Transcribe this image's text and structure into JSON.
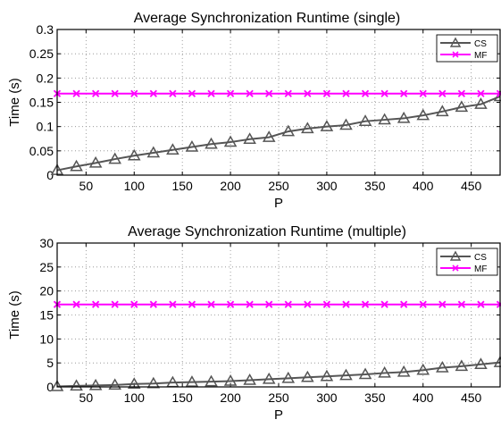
{
  "chart_data": [
    {
      "type": "line",
      "title": "Average Synchronization Runtime (single)",
      "xlabel": "P",
      "ylabel": "Time (s)",
      "xlim": [
        20,
        480
      ],
      "ylim": [
        0,
        0.3
      ],
      "xticks": [
        50,
        100,
        150,
        200,
        250,
        300,
        350,
        400,
        450
      ],
      "yticks": [
        0,
        0.05,
        0.1,
        0.15,
        0.2,
        0.25,
        0.3
      ],
      "ytick_labels": [
        "0",
        "0.05",
        "0.1",
        "0.15",
        "0.2",
        "0.25",
        "0.3"
      ],
      "grid": true,
      "legend_position": "top-right",
      "x": [
        20,
        40,
        60,
        80,
        100,
        120,
        140,
        160,
        180,
        200,
        220,
        240,
        260,
        280,
        300,
        320,
        340,
        360,
        380,
        400,
        420,
        440,
        460,
        480
      ],
      "series": [
        {
          "name": "CS",
          "color": "#555555",
          "marker": "triangle",
          "values": [
            0.01,
            0.018,
            0.025,
            0.033,
            0.04,
            0.046,
            0.052,
            0.058,
            0.064,
            0.068,
            0.074,
            0.078,
            0.09,
            0.096,
            0.1,
            0.103,
            0.111,
            0.114,
            0.117,
            0.123,
            0.131,
            0.14,
            0.146,
            0.162
          ]
        },
        {
          "name": "MF",
          "color": "#ff00ff",
          "marker": "x",
          "values": [
            0.168,
            0.168,
            0.168,
            0.168,
            0.168,
            0.168,
            0.168,
            0.168,
            0.168,
            0.168,
            0.168,
            0.168,
            0.168,
            0.168,
            0.168,
            0.168,
            0.168,
            0.168,
            0.168,
            0.168,
            0.168,
            0.168,
            0.168,
            0.168
          ]
        }
      ]
    },
    {
      "type": "line",
      "title": "Average Synchronization Runtime (multiple)",
      "xlabel": "P",
      "ylabel": "Time (s)",
      "xlim": [
        20,
        480
      ],
      "ylim": [
        0,
        30
      ],
      "xticks": [
        50,
        100,
        150,
        200,
        250,
        300,
        350,
        400,
        450
      ],
      "yticks": [
        0,
        5,
        10,
        15,
        20,
        25,
        30
      ],
      "ytick_labels": [
        "0",
        "5",
        "10",
        "15",
        "20",
        "25",
        "30"
      ],
      "grid": true,
      "legend_position": "top-right",
      "x": [
        20,
        40,
        60,
        80,
        100,
        120,
        140,
        160,
        180,
        200,
        220,
        240,
        260,
        280,
        300,
        320,
        340,
        360,
        380,
        400,
        420,
        440,
        460,
        480
      ],
      "series": [
        {
          "name": "CS",
          "color": "#555555",
          "marker": "triangle",
          "values": [
            0.1,
            0.2,
            0.3,
            0.4,
            0.6,
            0.7,
            0.9,
            1.0,
            1.1,
            1.2,
            1.4,
            1.6,
            1.8,
            2.0,
            2.2,
            2.4,
            2.6,
            2.9,
            3.1,
            3.5,
            4.0,
            4.3,
            4.7,
            5.1
          ]
        },
        {
          "name": "MF",
          "color": "#ff00ff",
          "marker": "x",
          "values": [
            17.2,
            17.2,
            17.2,
            17.2,
            17.2,
            17.2,
            17.2,
            17.2,
            17.2,
            17.2,
            17.2,
            17.2,
            17.2,
            17.2,
            17.2,
            17.2,
            17.2,
            17.2,
            17.2,
            17.2,
            17.2,
            17.2,
            17.2,
            17.2
          ]
        }
      ]
    }
  ]
}
